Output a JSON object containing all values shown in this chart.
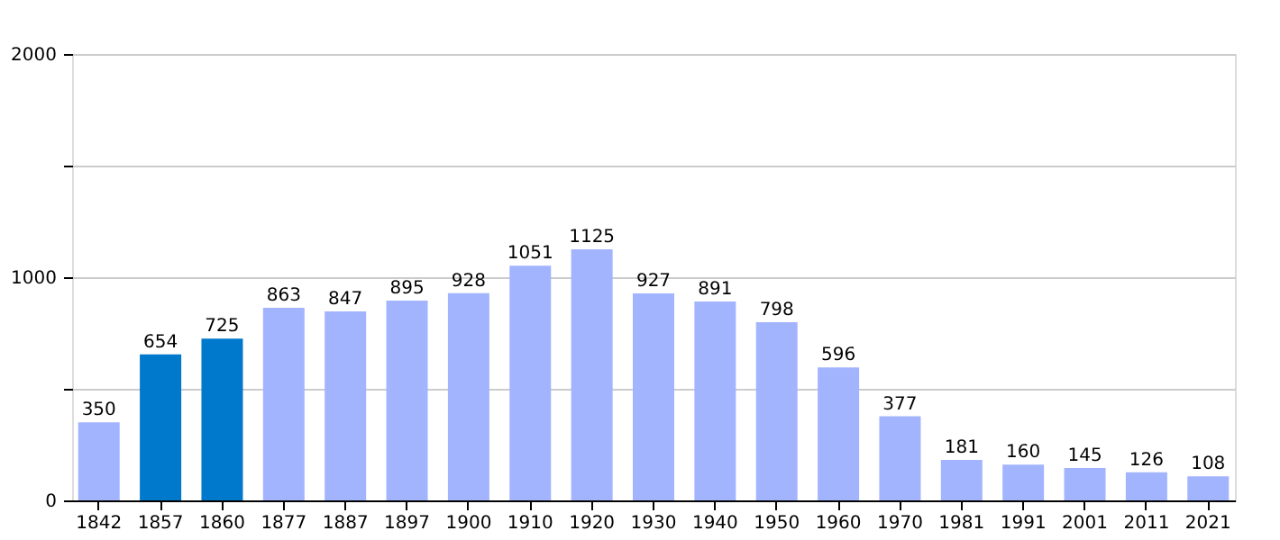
{
  "chart_data": {
    "type": "bar",
    "categories": [
      "1842",
      "1857",
      "1860",
      "1877",
      "1887",
      "1897",
      "1900",
      "1910",
      "1920",
      "1930",
      "1940",
      "1950",
      "1960",
      "1970",
      "1981",
      "1991",
      "2001",
      "2011",
      "2021"
    ],
    "values": [
      350,
      654,
      725,
      863,
      847,
      895,
      928,
      1051,
      1125,
      927,
      891,
      798,
      596,
      377,
      181,
      160,
      145,
      126,
      108
    ],
    "colors": [
      "#a3b4ff",
      "#0079cc",
      "#0079cc",
      "#a3b4ff",
      "#a3b4ff",
      "#a3b4ff",
      "#a3b4ff",
      "#a3b4ff",
      "#a3b4ff",
      "#a3b4ff",
      "#a3b4ff",
      "#a3b4ff",
      "#a3b4ff",
      "#a3b4ff",
      "#a3b4ff",
      "#a3b4ff",
      "#a3b4ff",
      "#a3b4ff",
      "#a3b4ff"
    ],
    "ylim": [
      0,
      2000
    ],
    "yticks": [
      0,
      {
        "value": 500,
        "label": null
      },
      1000,
      {
        "value": 1500,
        "label": null
      },
      2000
    ],
    "grid": "y",
    "data_labels": true
  }
}
